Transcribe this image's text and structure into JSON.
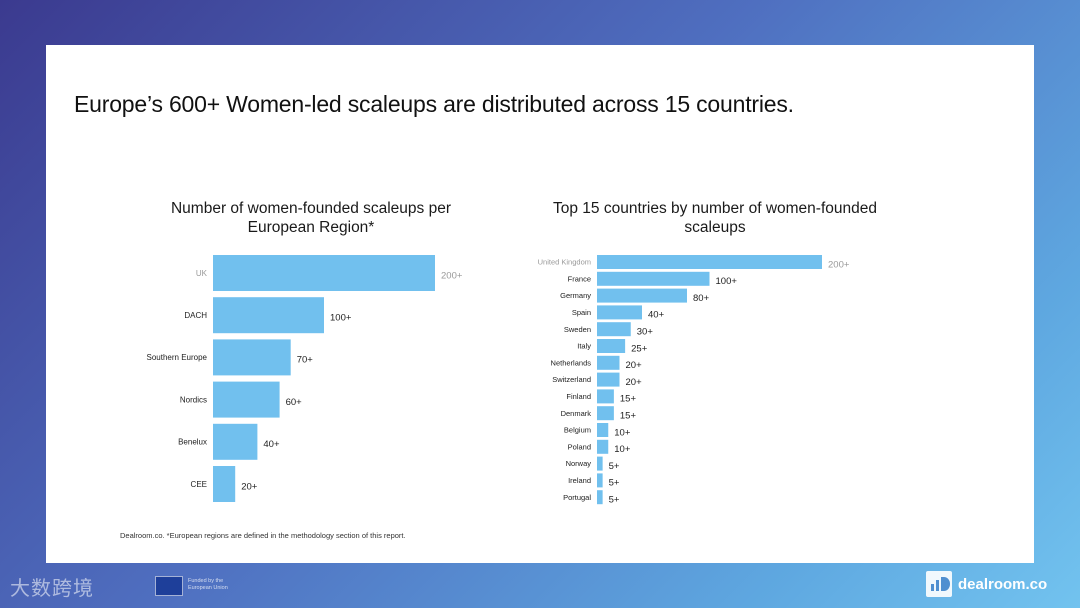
{
  "headline": "Europe’s 600+ Women-led scaleups are distributed across 15 countries.",
  "footnote": "Dealroom.co. *European regions are defined in the methodology section of this report.",
  "watermark": "大数跨境",
  "eu_text": [
    "Funded by the",
    "European Union"
  ],
  "brand": "dealroom.co",
  "colors": {
    "bar": "#71c0ee",
    "label": "#222222",
    "muted": "#999999"
  },
  "chart_data": [
    {
      "type": "bar",
      "orientation": "horizontal",
      "title": "Number of women-founded scaleups per European Region*",
      "title_lines": [
        "Number of women-founded  scaleups per",
        "European Region*"
      ],
      "categories": [
        "UK",
        "DACH",
        "Southern Europe",
        "Nordics",
        "Benelux",
        "CEE"
      ],
      "values": [
        200,
        100,
        70,
        60,
        40,
        20
      ],
      "data_labels": [
        "200+",
        "100+",
        "70+",
        "60+",
        "40+",
        "20+"
      ],
      "xlim": [
        0,
        200
      ],
      "grid": false,
      "legend": "none"
    },
    {
      "type": "bar",
      "orientation": "horizontal",
      "title": "Top 15 countries by number of women-founded scaleups",
      "title_lines": [
        "Top 15 countries by number of women-founded",
        "scaleups"
      ],
      "categories": [
        "United Kingdom",
        "France",
        "Germany",
        "Spain",
        "Sweden",
        "Italy",
        "Netherlands",
        "Switzerland",
        "Finland",
        "Denmark",
        "Belgium",
        "Poland",
        "Norway",
        "Ireland",
        "Portugal"
      ],
      "values": [
        200,
        100,
        80,
        40,
        30,
        25,
        20,
        20,
        15,
        15,
        10,
        10,
        5,
        5,
        5
      ],
      "data_labels": [
        "200+",
        "100+",
        "80+",
        "40+",
        "30+",
        "25+",
        "20+",
        "20+",
        "15+",
        "15+",
        "10+",
        "10+",
        "5+",
        "5+",
        "5+"
      ],
      "xlim": [
        0,
        200
      ],
      "grid": false,
      "legend": "none"
    }
  ]
}
